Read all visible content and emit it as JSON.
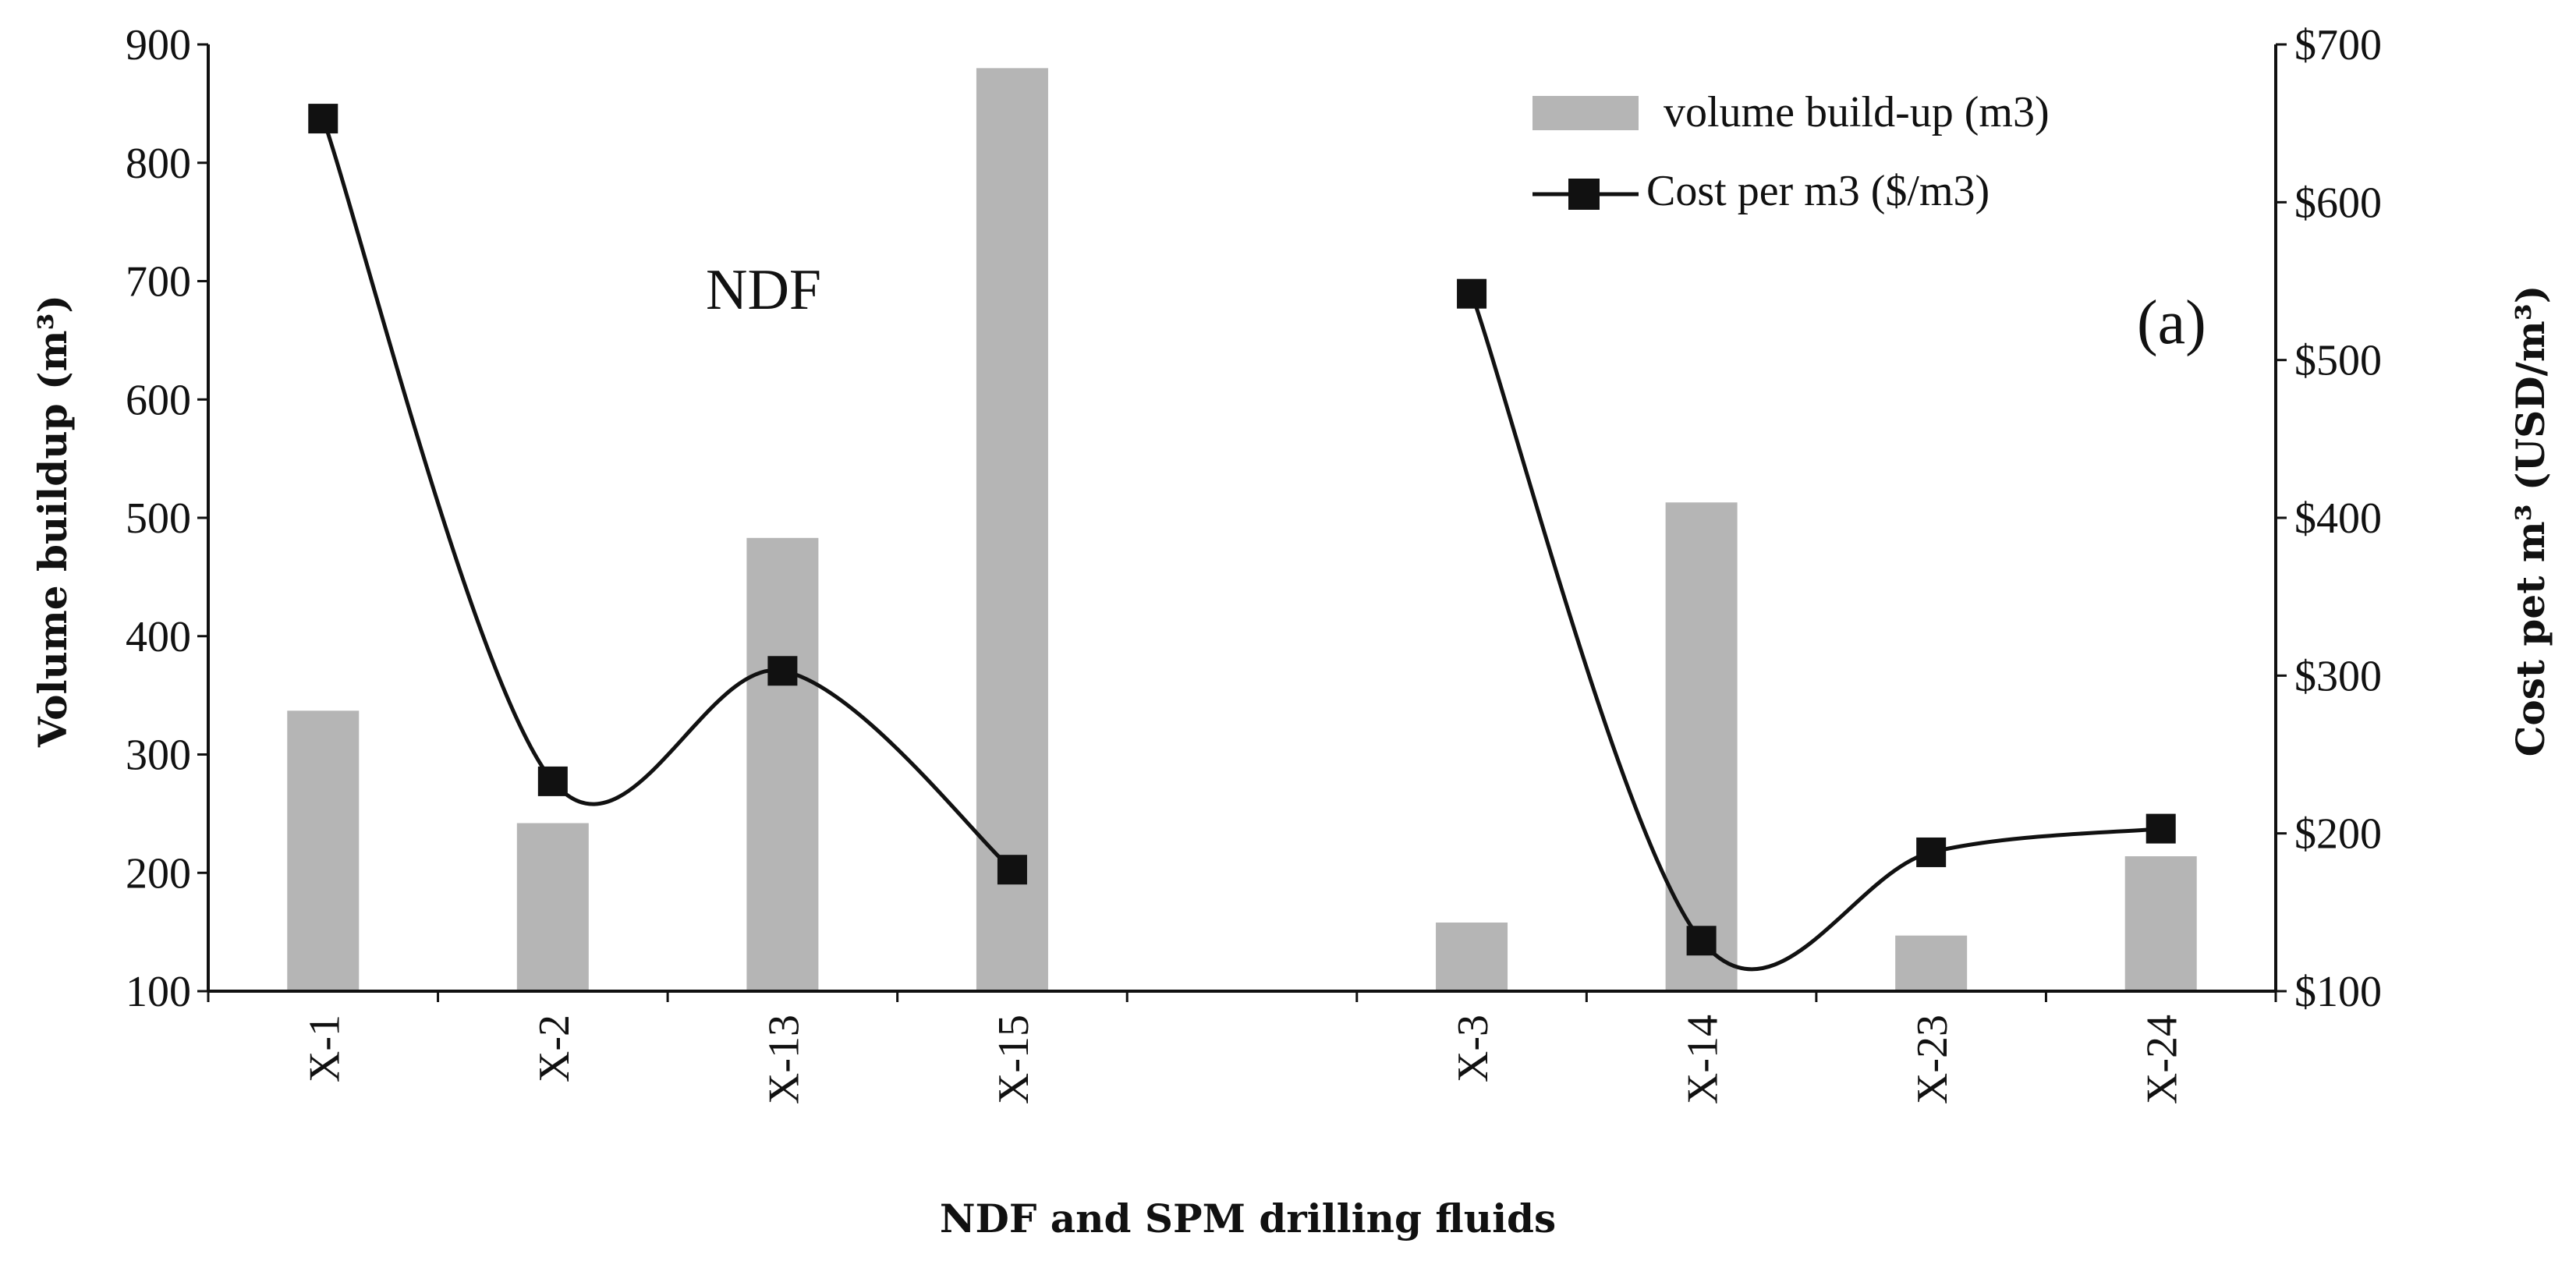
{
  "chart_data": {
    "type": "bar",
    "title": "",
    "xlabel": "NDF and SPM drilling fluids",
    "ylabel": "Volume buildup (m³)",
    "y2label": "Cost pet m³ (USD/m³)",
    "categories": [
      "X-1",
      "X-2",
      "X-13",
      "X-15",
      "",
      "X-3",
      "X-14",
      "X-23",
      "X-24"
    ],
    "ylim": [
      100,
      900
    ],
    "yticks": [
      "100",
      "200",
      "300",
      "400",
      "500",
      "600",
      "700",
      "800",
      "900"
    ],
    "y2lim": [
      100,
      700
    ],
    "y2ticks": [
      "$100",
      "$200",
      "$300",
      "$400",
      "$500",
      "$600",
      "$700"
    ],
    "series": [
      {
        "name": "volume build-up (m3)",
        "type": "bar",
        "axis": "left",
        "color": "#b5b5b5",
        "values": [
          337,
          242,
          483,
          880,
          null,
          158,
          513,
          147,
          214
        ]
      },
      {
        "name": "Cost per m3 ($/m3)",
        "type": "line",
        "axis": "right",
        "color": "#111111",
        "marker": "square",
        "segments": [
          {
            "categories": [
              "X-1",
              "X-2",
              "X-13",
              "X-15"
            ],
            "values": [
              653,
              233,
              303,
              177
            ]
          },
          {
            "categories": [
              "X-3",
              "X-14",
              "X-23",
              "X-24"
            ],
            "values": [
              542,
              132,
              188,
              203
            ]
          }
        ]
      }
    ],
    "annotations": [
      "NDF",
      "(a)"
    ],
    "legend_position": "top-right",
    "grid": false
  }
}
